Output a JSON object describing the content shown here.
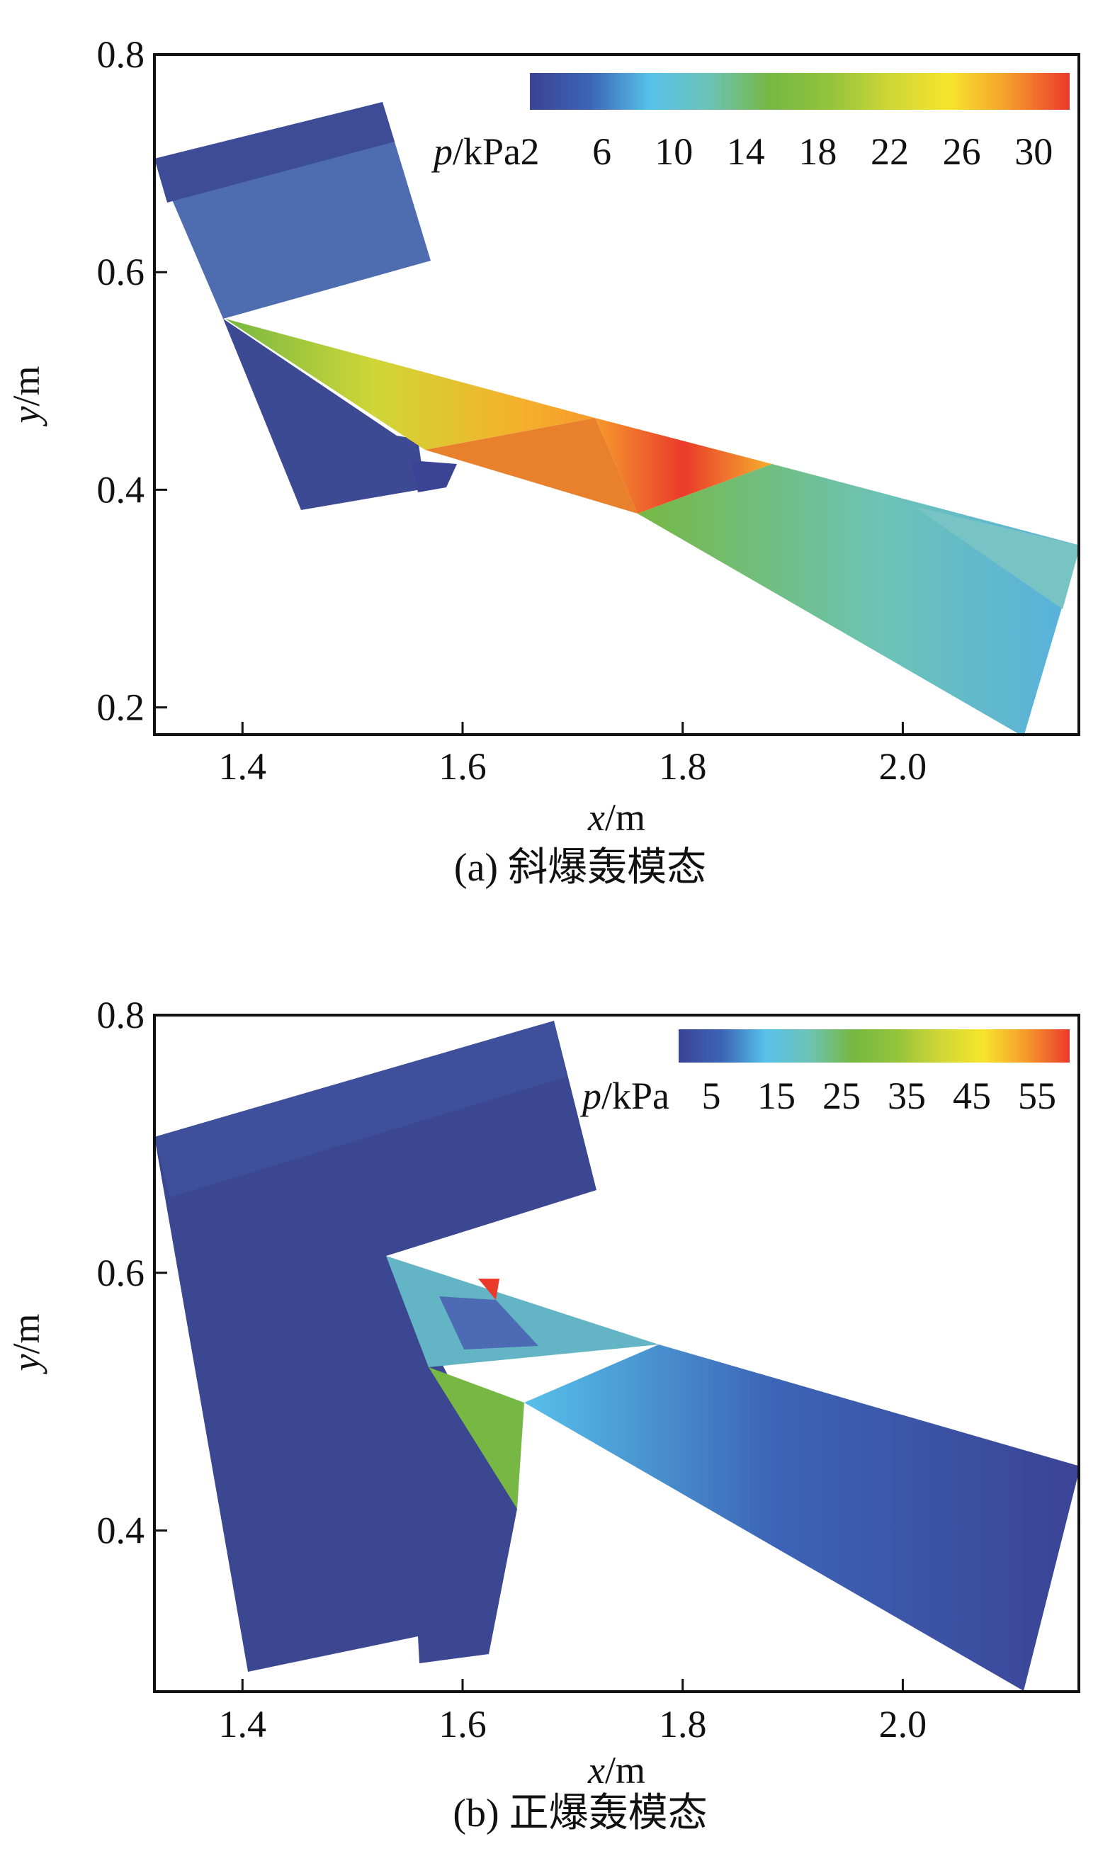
{
  "chart_data": [
    {
      "type": "heatmap",
      "caption": "(a) 斜爆轰模态",
      "xlabel_var": "x",
      "xlabel_unit": "/m",
      "ylabel_var": "y",
      "ylabel_unit": "/m",
      "xlim": [
        1.32,
        2.16
      ],
      "ylim": [
        0.175,
        0.8
      ],
      "x_ticks": [
        1.4,
        1.6,
        1.8,
        2.0
      ],
      "x_tick_labels": [
        "1.4",
        "1.6",
        "1.8",
        "2.0"
      ],
      "y_ticks": [
        0.2,
        0.4,
        0.6,
        0.8
      ],
      "y_tick_labels": [
        "0.2",
        "0.4",
        "0.6",
        "0.8"
      ],
      "colorbar": {
        "var": "p",
        "unit": "/kPa",
        "range": [
          2,
          32
        ],
        "ticks": [
          2,
          6,
          10,
          14,
          18,
          22,
          26,
          30
        ],
        "tick_labels": [
          "2",
          "6",
          "10",
          "14",
          "18",
          "22",
          "26",
          "30"
        ],
        "colors": [
          "#3b4395",
          "#3c64b6",
          "#57c1ea",
          "#6cc3b6",
          "#76b843",
          "#93c33c",
          "#cfd637",
          "#f7e52c",
          "#f59a2c",
          "#ea3a2b"
        ]
      }
    },
    {
      "type": "heatmap",
      "caption": "(b) 正爆轰模态",
      "xlabel_var": "x",
      "xlabel_unit": "/m",
      "ylabel_var": "y",
      "ylabel_unit": "/m",
      "xlim": [
        1.32,
        2.16
      ],
      "ylim": [
        0.275,
        0.8
      ],
      "x_ticks": [
        1.4,
        1.6,
        1.8,
        2.0
      ],
      "x_tick_labels": [
        "1.4",
        "1.6",
        "1.8",
        "2.0"
      ],
      "y_ticks": [
        0.4,
        0.6,
        0.8
      ],
      "y_tick_labels": [
        "0.4",
        "0.6",
        "0.8"
      ],
      "colorbar": {
        "var": "p",
        "unit": "/kPa",
        "range": [
          0,
          60
        ],
        "ticks": [
          5,
          15,
          25,
          35,
          45,
          55
        ],
        "tick_labels": [
          "5",
          "15",
          "25",
          "35",
          "45",
          "55"
        ],
        "colors": [
          "#3b4395",
          "#3c64b6",
          "#57c1ea",
          "#6cc3b6",
          "#76b843",
          "#93c33c",
          "#cfd637",
          "#f7e52c",
          "#f59a2c",
          "#ea3a2b"
        ]
      }
    }
  ]
}
